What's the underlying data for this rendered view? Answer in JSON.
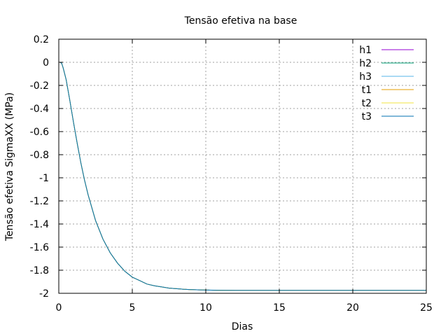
{
  "chart_data": {
    "type": "line",
    "title": "Tensão efetiva na base",
    "xlabel": "Dias",
    "ylabel": "Tensão efetiva SigmaXX (MPa)",
    "xlim": [
      0,
      25
    ],
    "ylim": [
      -2,
      0.2
    ],
    "xticks": [
      0,
      5,
      10,
      15,
      20,
      25
    ],
    "xtick_labels": [
      "0",
      "5",
      "10",
      "15",
      "20",
      "25"
    ],
    "yticks": [
      -2,
      -1.8,
      -1.6,
      -1.4,
      -1.2,
      -1,
      -0.8,
      -0.6,
      -0.4,
      -0.2,
      0,
      0.2
    ],
    "ytick_labels": [
      "-2",
      "-1.8",
      "-1.6",
      "-1.4",
      "-1.2",
      "-1",
      "-0.8",
      "-0.6",
      "-0.4",
      "-0.2",
      "0",
      "0.2"
    ],
    "grid": true,
    "legend_position": "top-right",
    "x": [
      0,
      0.1,
      0.2,
      0.3,
      0.5,
      0.75,
      1,
      1.25,
      1.5,
      1.75,
      2,
      2.5,
      3,
      3.5,
      4,
      4.5,
      5,
      5.5,
      6,
      6.5,
      7,
      7.5,
      8,
      8.5,
      9,
      10,
      11,
      12,
      13,
      14,
      15,
      17.5,
      20,
      22.5,
      25
    ],
    "series": [
      {
        "name": "h1",
        "color": "#9400d3",
        "values": [
          0,
          0,
          -0.01,
          -0.05,
          -0.15,
          -0.33,
          -0.52,
          -0.7,
          -0.87,
          -1.02,
          -1.15,
          -1.37,
          -1.53,
          -1.65,
          -1.74,
          -1.81,
          -1.86,
          -1.89,
          -1.92,
          -1.935,
          -1.945,
          -1.955,
          -1.96,
          -1.965,
          -1.968,
          -1.972,
          -1.974,
          -1.975,
          -1.975,
          -1.975,
          -1.975,
          -1.975,
          -1.975,
          -1.975,
          -1.975
        ]
      },
      {
        "name": "h2",
        "color": "#009e73",
        "values": [
          0,
          0,
          -0.01,
          -0.05,
          -0.15,
          -0.33,
          -0.52,
          -0.7,
          -0.87,
          -1.02,
          -1.15,
          -1.37,
          -1.53,
          -1.65,
          -1.74,
          -1.81,
          -1.86,
          -1.89,
          -1.92,
          -1.935,
          -1.945,
          -1.955,
          -1.96,
          -1.965,
          -1.968,
          -1.972,
          -1.974,
          -1.975,
          -1.975,
          -1.975,
          -1.975,
          -1.975,
          -1.975,
          -1.975,
          -1.975
        ]
      },
      {
        "name": "h3",
        "color": "#56b4e9",
        "values": [
          0,
          0,
          -0.01,
          -0.05,
          -0.15,
          -0.33,
          -0.52,
          -0.7,
          -0.87,
          -1.02,
          -1.15,
          -1.37,
          -1.53,
          -1.65,
          -1.74,
          -1.81,
          -1.86,
          -1.89,
          -1.92,
          -1.935,
          -1.945,
          -1.955,
          -1.96,
          -1.965,
          -1.968,
          -1.972,
          -1.974,
          -1.975,
          -1.975,
          -1.975,
          -1.975,
          -1.975,
          -1.975,
          -1.975,
          -1.975
        ]
      },
      {
        "name": "t1",
        "color": "#e69f00",
        "values": [
          0,
          0,
          -0.01,
          -0.05,
          -0.15,
          -0.33,
          -0.52,
          -0.7,
          -0.87,
          -1.02,
          -1.15,
          -1.37,
          -1.53,
          -1.65,
          -1.74,
          -1.81,
          -1.86,
          -1.89,
          -1.92,
          -1.935,
          -1.945,
          -1.955,
          -1.96,
          -1.965,
          -1.968,
          -1.972,
          -1.974,
          -1.975,
          -1.975,
          -1.975,
          -1.975,
          -1.975,
          -1.975,
          -1.975,
          -1.975
        ]
      },
      {
        "name": "t2",
        "color": "#f0e442",
        "values": [
          0,
          0,
          -0.01,
          -0.05,
          -0.15,
          -0.33,
          -0.52,
          -0.7,
          -0.87,
          -1.02,
          -1.15,
          -1.37,
          -1.53,
          -1.65,
          -1.74,
          -1.81,
          -1.86,
          -1.89,
          -1.92,
          -1.935,
          -1.945,
          -1.955,
          -1.96,
          -1.965,
          -1.968,
          -1.972,
          -1.974,
          -1.975,
          -1.975,
          -1.975,
          -1.975,
          -1.975,
          -1.975,
          -1.975,
          -1.975
        ]
      },
      {
        "name": "t3",
        "color": "#0072b2",
        "values": [
          0,
          0,
          -0.01,
          -0.05,
          -0.15,
          -0.33,
          -0.52,
          -0.7,
          -0.87,
          -1.02,
          -1.15,
          -1.37,
          -1.53,
          -1.65,
          -1.74,
          -1.81,
          -1.86,
          -1.89,
          -1.92,
          -1.935,
          -1.945,
          -1.955,
          -1.96,
          -1.965,
          -1.968,
          -1.972,
          -1.974,
          -1.975,
          -1.975,
          -1.975,
          -1.975,
          -1.975,
          -1.975,
          -1.975,
          -1.975
        ]
      }
    ]
  }
}
